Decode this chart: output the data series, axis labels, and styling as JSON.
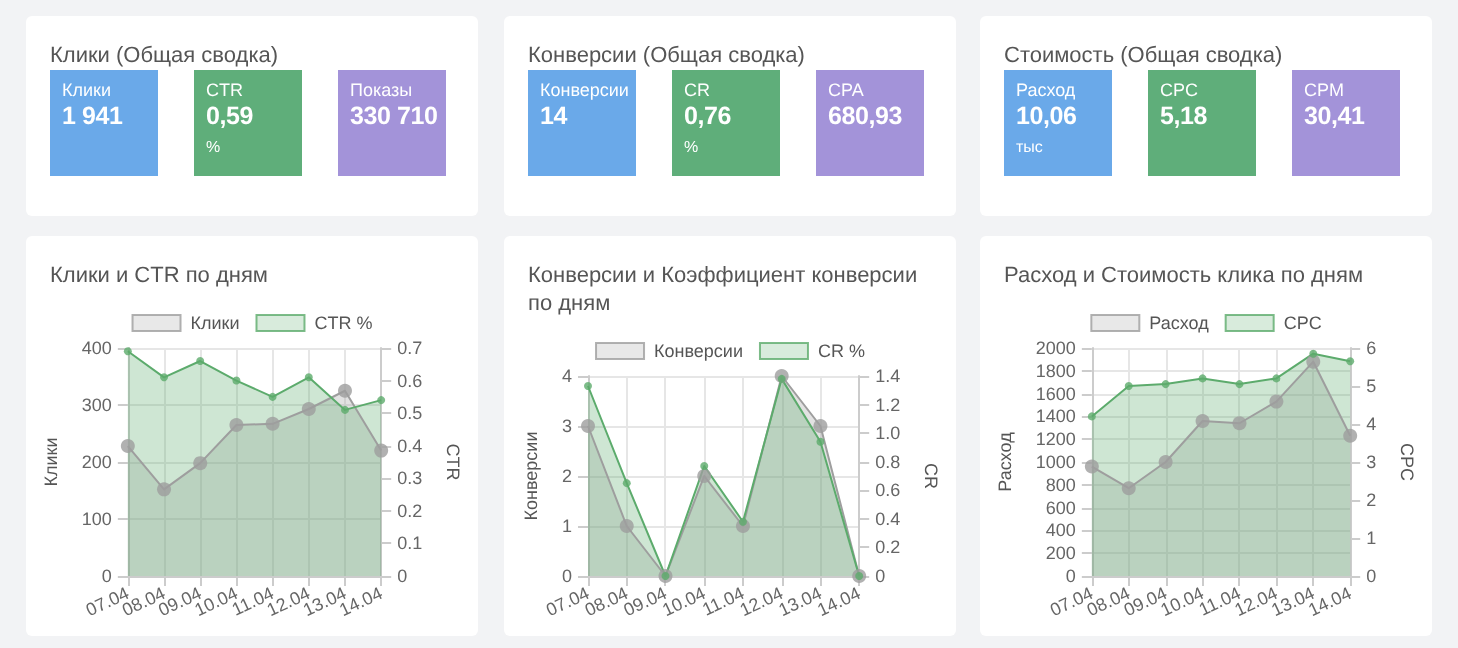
{
  "chart_data": [
    {
      "type": "other",
      "title": "Клики (Общая сводка)",
      "categories": [
        "Клики",
        "CTR",
        "Показы"
      ],
      "value_labels": [
        "1 941",
        "0,59",
        "330 710"
      ],
      "colors": [
        "#6aa9e9",
        "#5fae7a",
        "#a393d9"
      ],
      "annotations": [
        {
          "text": "%",
          "x": "CTR"
        }
      ]
    },
    {
      "type": "other",
      "title": "Конверсии (Общая сводка)",
      "categories": [
        "Конверсии",
        "CR",
        "CPA"
      ],
      "value_labels": [
        "14",
        "0,76",
        "680,93"
      ],
      "colors": [
        "#6aa9e9",
        "#5fae7a",
        "#a393d9"
      ],
      "annotations": [
        {
          "text": "%",
          "x": "CR"
        }
      ]
    },
    {
      "type": "other",
      "title": "Стоимость (Общая сводка)",
      "categories": [
        "Расход",
        "CPC",
        "CPM"
      ],
      "value_labels": [
        "10,06",
        "5,18",
        "30,41"
      ],
      "colors": [
        "#6aa9e9",
        "#5fae7a",
        "#a393d9"
      ],
      "annotations": [
        {
          "text": "тыс",
          "x": "Расход"
        }
      ]
    },
    {
      "type": "area",
      "title": "Клики и CTR по дням",
      "ylabel": "Клики",
      "y2label": "CTR",
      "categories": [
        "07.04",
        "08.04",
        "09.04",
        "10.04",
        "11.04",
        "12.04",
        "13.04",
        "14.04"
      ],
      "series": [
        {
          "name": "Клики",
          "color": "#9e9e9e",
          "values": [
            228,
            152,
            198,
            265,
            267,
            293,
            325,
            220
          ]
        },
        {
          "name": "CTR %",
          "color": "#5cab6c",
          "axis": "y2",
          "values": [
            0.69,
            0.61,
            0.66,
            0.6,
            0.55,
            0.61,
            0.51,
            0.54
          ]
        }
      ],
      "ylim": [
        0,
        400
      ],
      "yticks": [
        0,
        100,
        200,
        300,
        400
      ],
      "y2lim": [
        0,
        0.7
      ],
      "y2ticks": [
        0,
        0.1,
        0.2,
        0.3,
        0.4,
        0.5,
        0.6,
        0.7
      ],
      "grid": true,
      "legend": "top",
      "marker": "circle"
    },
    {
      "type": "area",
      "title": "Конверсии и Коэффициент конверсии по дням",
      "ylabel": "Конверсии",
      "y2label": "CR",
      "categories": [
        "07.04",
        "08.04",
        "09.04",
        "10.04",
        "11.04",
        "12.04",
        "13.04",
        "14.04"
      ],
      "series": [
        {
          "name": "Конверсии",
          "color": "#9e9e9e",
          "values": [
            3,
            1,
            0,
            2,
            1,
            4,
            3,
            0
          ]
        },
        {
          "name": "CR %",
          "color": "#5cab6c",
          "axis": "y2",
          "values": [
            1.33,
            0.65,
            0,
            0.77,
            0.38,
            1.38,
            0.94,
            0
          ]
        }
      ],
      "ylim": [
        0,
        4
      ],
      "yticks": [
        0,
        1,
        2,
        3,
        4
      ],
      "y2lim": [
        0,
        1.4
      ],
      "y2ticks": [
        0,
        0.2,
        0.4,
        0.6,
        0.8,
        {
          "value": 1,
          "label": "1.0"
        },
        1.2,
        1.4
      ],
      "grid": true,
      "legend": "top",
      "marker": "circle"
    },
    {
      "type": "area",
      "title": "Расход и Стоимость клика по дням",
      "ylabel": "Расход",
      "y2label": "CPC",
      "categories": [
        "07.04",
        "08.04",
        "09.04",
        "10.04",
        "11.04",
        "12.04",
        "13.04",
        "14.04"
      ],
      "series": [
        {
          "name": "Расход",
          "color": "#9e9e9e",
          "values": [
            960,
            770,
            1000,
            1360,
            1340,
            1530,
            1880,
            1230
          ]
        },
        {
          "name": "CPC",
          "color": "#5cab6c",
          "axis": "y2",
          "values": [
            4.2,
            5.0,
            5.05,
            5.2,
            5.05,
            5.2,
            5.85,
            5.65
          ]
        }
      ],
      "ylim": [
        0,
        2000
      ],
      "yticks": [
        0,
        200,
        400,
        600,
        800,
        1000,
        1200,
        1400,
        1600,
        1800,
        2000
      ],
      "y2lim": [
        0,
        6
      ],
      "y2ticks": [
        0,
        1,
        2,
        3,
        4,
        5,
        6
      ],
      "grid": true,
      "legend": "top",
      "marker": "circle"
    }
  ]
}
